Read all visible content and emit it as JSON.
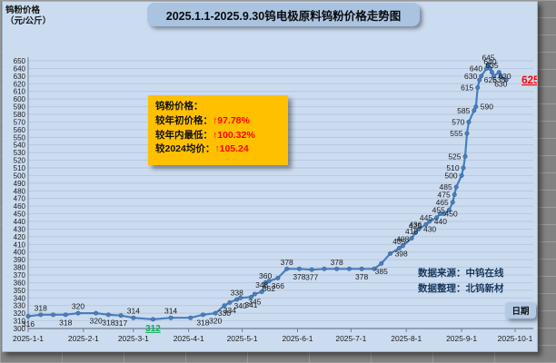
{
  "chart": {
    "title": "2025.1.1-2025.9.30钨电极原料钨粉价格走势图",
    "y_axis_title_line1": "钨粉价格",
    "y_axis_title_line2": "（元/公斤）",
    "x_axis_title": "日期",
    "annotation": {
      "heading": "钨粉价格：",
      "rows": [
        {
          "label": "较年初价格：",
          "value": "↑97.78%"
        },
        {
          "label": "较年内最低：",
          "value": "↑100.32%"
        },
        {
          "label": "较2024均价：",
          "value": "↑105.24"
        }
      ]
    },
    "source_line1": "数据来源：中钨在线",
    "source_line2": "数据整理：北钨新材",
    "colors": {
      "line": "#4a7ebc",
      "chart_bg": "#ccdcf0",
      "gridline": "#aebfd8",
      "annotation_bg": "#ffc000",
      "value_red": "#ff0000",
      "min_green": "#00b050",
      "title_bg": "#aac3e1",
      "axis": "#6f7f93",
      "label_text": "#1a1a1a"
    }
  },
  "chart_data": {
    "type": "line",
    "title": "2025.1.1-2025.9.30钨电极原料钨粉价格走势图",
    "xlabel": "日期",
    "ylabel": "钨粉价格（元/公斤）",
    "ylim": [
      300,
      650
    ],
    "ytick_step": 10,
    "y_ticks": [
      650,
      640,
      630,
      620,
      610,
      600,
      590,
      580,
      570,
      560,
      550,
      540,
      530,
      520,
      510,
      500,
      490,
      480,
      470,
      460,
      450,
      440,
      430,
      420,
      410,
      400,
      390,
      380,
      370,
      360,
      350,
      340,
      330,
      320,
      310,
      300
    ],
    "x_ticks": [
      "2025-1-1",
      "2025-2-1",
      "2025-3-1",
      "2025-4-1",
      "2025-5-1",
      "2025-6-1",
      "2025-7-1",
      "2025-8-1",
      "2025-9-1",
      "2025-10-1"
    ],
    "grid": true,
    "legend": "none",
    "series": [
      {
        "name": "钨粉价格",
        "points": [
          {
            "d": "2025-01-01",
            "v": 316,
            "lp": "b"
          },
          {
            "d": "2025-01-08",
            "v": 318,
            "lp": "a"
          },
          {
            "d": "2025-01-15",
            "v": 318,
            "lp": "n"
          },
          {
            "d": "2025-01-22",
            "v": 318,
            "lp": "b"
          },
          {
            "d": "2025-01-29",
            "v": 320,
            "lp": "a"
          },
          {
            "d": "2025-02-08",
            "v": 320,
            "lp": "b"
          },
          {
            "d": "2025-02-15",
            "v": 318,
            "lp": "b"
          },
          {
            "d": "2025-02-22",
            "v": 317,
            "lp": "b"
          },
          {
            "d": "2025-03-01",
            "v": 314,
            "lp": "a"
          },
          {
            "d": "2025-03-12",
            "v": 312,
            "lp": "min"
          },
          {
            "d": "2025-03-22",
            "v": 314,
            "lp": "a"
          },
          {
            "d": "2025-04-02",
            "v": 314,
            "lp": "n"
          },
          {
            "d": "2025-04-09",
            "v": 318,
            "lp": "b"
          },
          {
            "d": "2025-04-16",
            "v": 320,
            "lp": "b"
          },
          {
            "d": "2025-04-21",
            "v": 330,
            "lp": "b"
          },
          {
            "d": "2025-04-24",
            "v": 334,
            "lp": "b"
          },
          {
            "d": "2025-04-28",
            "v": 338,
            "lp": "a"
          },
          {
            "d": "2025-04-30",
            "v": 340,
            "lp": "b"
          },
          {
            "d": "2025-05-06",
            "v": 341,
            "lp": "b"
          },
          {
            "d": "2025-05-08",
            "v": 345,
            "lp": "b"
          },
          {
            "d": "2025-05-12",
            "v": 348,
            "lp": "a"
          },
          {
            "d": "2025-05-14",
            "v": 360,
            "lp": "a"
          },
          {
            "d": "2025-05-16",
            "v": 362,
            "lp": "b"
          },
          {
            "d": "2025-05-21",
            "v": 366,
            "lp": "b"
          },
          {
            "d": "2025-05-26",
            "v": 378,
            "lp": "a"
          },
          {
            "d": "2025-06-02",
            "v": 378,
            "lp": "b"
          },
          {
            "d": "2025-06-09",
            "v": 377,
            "lp": "b"
          },
          {
            "d": "2025-06-16",
            "v": 378,
            "lp": "n"
          },
          {
            "d": "2025-06-23",
            "v": 378,
            "lp": "a"
          },
          {
            "d": "2025-06-30",
            "v": 378,
            "lp": "n"
          },
          {
            "d": "2025-07-07",
            "v": 378,
            "lp": "b"
          },
          {
            "d": "2025-07-14",
            "v": 378,
            "lp": "n"
          },
          {
            "d": "2025-07-18",
            "v": 385,
            "lp": "b"
          },
          {
            "d": "2025-07-23",
            "v": 398,
            "lp": "r"
          },
          {
            "d": "2025-07-28",
            "v": 405,
            "lp": "a"
          },
          {
            "d": "2025-07-30",
            "v": 408,
            "lp": "a"
          },
          {
            "d": "2025-08-04",
            "v": 418,
            "lp": "a"
          },
          {
            "d": "2025-08-06",
            "v": 425,
            "lp": "a"
          },
          {
            "d": "2025-08-08",
            "v": 430,
            "lp": "r"
          },
          {
            "d": "2025-08-12",
            "v": 436,
            "lp": "l"
          },
          {
            "d": "2025-08-14",
            "v": 440,
            "lp": "r"
          },
          {
            "d": "2025-08-18",
            "v": 445,
            "lp": "l"
          },
          {
            "d": "2025-08-20",
            "v": 450,
            "lp": "r"
          },
          {
            "d": "2025-08-22",
            "v": 450,
            "lp": "n"
          },
          {
            "d": "2025-08-25",
            "v": 455,
            "lp": "l"
          },
          {
            "d": "2025-08-27",
            "v": 465,
            "lp": "l"
          },
          {
            "d": "2025-08-28",
            "v": 475,
            "lp": "l"
          },
          {
            "d": "2025-08-29",
            "v": 485,
            "lp": "l"
          },
          {
            "d": "2025-09-01",
            "v": 500,
            "lp": "l"
          },
          {
            "d": "2025-09-02",
            "v": 510,
            "lp": "l"
          },
          {
            "d": "2025-09-03",
            "v": 525,
            "lp": "l"
          },
          {
            "d": "2025-09-04",
            "v": 555,
            "lp": "l"
          },
          {
            "d": "2025-09-05",
            "v": 570,
            "lp": "l"
          },
          {
            "d": "2025-09-08",
            "v": 585,
            "lp": "l"
          },
          {
            "d": "2025-09-09",
            "v": 590,
            "lp": "r"
          },
          {
            "d": "2025-09-10",
            "v": 615,
            "lp": "l"
          },
          {
            "d": "2025-09-11",
            "v": 625,
            "lp": "r"
          },
          {
            "d": "2025-09-12",
            "v": 630,
            "lp": "l"
          },
          {
            "d": "2025-09-15",
            "v": 640,
            "lp": "l"
          },
          {
            "d": "2025-09-16",
            "v": 645,
            "lp": "a"
          },
          {
            "d": "2025-09-17",
            "v": 640,
            "lp": "a"
          },
          {
            "d": "2025-09-18",
            "v": 635,
            "lp": "a"
          },
          {
            "d": "2025-09-19",
            "v": 630,
            "lp": "r"
          },
          {
            "d": "2025-09-22",
            "v": 635,
            "lp": "b"
          },
          {
            "d": "2025-09-23",
            "v": 630,
            "lp": "b"
          },
          {
            "d": "2025-09-26",
            "v": 625,
            "lp": "last"
          }
        ]
      }
    ]
  }
}
